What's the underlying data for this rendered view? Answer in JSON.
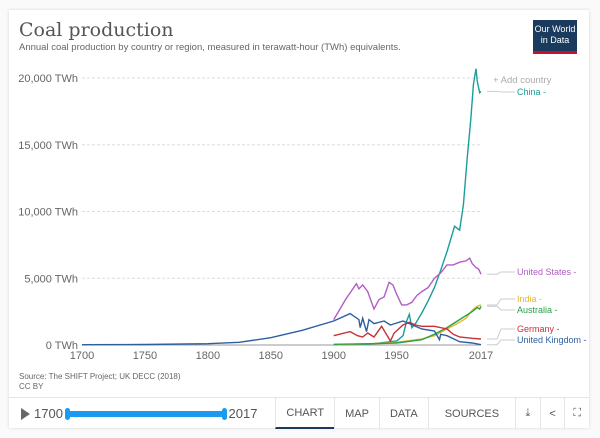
{
  "header": {
    "title": "Coal production",
    "subtitle": "Annual coal production by country or region, measured in terawatt-hour (TWh) equivalents.",
    "logo": "Our World in Data"
  },
  "add_country": "+ Add country",
  "footer": {
    "source": "Source: The SHIFT Project; UK DECC (2018)",
    "license": "CC BY"
  },
  "controls": {
    "start_year": "1700",
    "end_year": "2017",
    "tabs": [
      "CHART",
      "MAP",
      "DATA",
      "SOURCES"
    ],
    "active_tab": "CHART",
    "icons": [
      "download-icon",
      "share-icon",
      "fullscreen-icon"
    ]
  },
  "chart_data": {
    "type": "line",
    "title": "Coal production",
    "ylabel": "TWh",
    "xlim": [
      1700,
      2017
    ],
    "ylim": [
      0,
      20000
    ],
    "x_ticks": [
      1700,
      1750,
      1800,
      1850,
      1900,
      1950,
      2017
    ],
    "y_ticks": [
      {
        "v": 0,
        "label": "0 TWh"
      },
      {
        "v": 5000,
        "label": "5,000 TWh"
      },
      {
        "v": 10000,
        "label": "10,000 TWh"
      },
      {
        "v": 15000,
        "label": "15,000 TWh"
      },
      {
        "v": 20000,
        "label": "20,000 TWh"
      }
    ],
    "series": [
      {
        "name": "China",
        "label": "China -",
        "color": "#1a9e9a",
        "points": [
          [
            1900,
            10
          ],
          [
            1930,
            80
          ],
          [
            1950,
            300
          ],
          [
            1955,
            700
          ],
          [
            1958,
            1800
          ],
          [
            1960,
            2300
          ],
          [
            1962,
            1300
          ],
          [
            1965,
            1600
          ],
          [
            1970,
            2400
          ],
          [
            1975,
            3300
          ],
          [
            1980,
            4300
          ],
          [
            1985,
            5600
          ],
          [
            1990,
            7000
          ],
          [
            1996,
            8900
          ],
          [
            2000,
            8600
          ],
          [
            2003,
            10500
          ],
          [
            2006,
            14000
          ],
          [
            2009,
            17000
          ],
          [
            2011,
            19500
          ],
          [
            2013,
            20700
          ],
          [
            2014,
            19800
          ],
          [
            2015,
            19300
          ],
          [
            2016,
            18900
          ],
          [
            2017,
            19000
          ]
        ]
      },
      {
        "name": "United States",
        "label": "United States -",
        "color": "#b05ec4",
        "points": [
          [
            1900,
            1900
          ],
          [
            1905,
            2700
          ],
          [
            1910,
            3500
          ],
          [
            1913,
            3900
          ],
          [
            1918,
            4600
          ],
          [
            1920,
            4200
          ],
          [
            1923,
            4500
          ],
          [
            1927,
            4000
          ],
          [
            1932,
            2700
          ],
          [
            1936,
            3400
          ],
          [
            1940,
            3600
          ],
          [
            1944,
            4700
          ],
          [
            1947,
            4500
          ],
          [
            1950,
            3800
          ],
          [
            1954,
            3000
          ],
          [
            1958,
            3000
          ],
          [
            1962,
            3200
          ],
          [
            1966,
            3700
          ],
          [
            1970,
            4000
          ],
          [
            1975,
            4300
          ],
          [
            1980,
            5000
          ],
          [
            1985,
            5400
          ],
          [
            1990,
            6000
          ],
          [
            1995,
            6000
          ],
          [
            2000,
            6200
          ],
          [
            2005,
            6300
          ],
          [
            2008,
            6500
          ],
          [
            2010,
            6100
          ],
          [
            2013,
            5800
          ],
          [
            2015,
            5700
          ],
          [
            2017,
            5300
          ]
        ]
      },
      {
        "name": "India",
        "label": "India -",
        "color": "#e8b52a",
        "points": [
          [
            1900,
            20
          ],
          [
            1930,
            100
          ],
          [
            1950,
            200
          ],
          [
            1970,
            450
          ],
          [
            1980,
            700
          ],
          [
            1990,
            1200
          ],
          [
            2000,
            1700
          ],
          [
            2005,
            2000
          ],
          [
            2010,
            2600
          ],
          [
            2014,
            2900
          ],
          [
            2017,
            3000
          ]
        ]
      },
      {
        "name": "Australia",
        "label": "Australia -",
        "color": "#2aa04a",
        "points": [
          [
            1900,
            50
          ],
          [
            1930,
            100
          ],
          [
            1950,
            150
          ],
          [
            1970,
            400
          ],
          [
            1980,
            800
          ],
          [
            1990,
            1300
          ],
          [
            2000,
            1900
          ],
          [
            2005,
            2200
          ],
          [
            2010,
            2500
          ],
          [
            2014,
            2800
          ],
          [
            2016,
            2700
          ],
          [
            2017,
            2900
          ]
        ]
      },
      {
        "name": "Germany",
        "label": "Germany -",
        "color": "#c8303a",
        "points": [
          [
            1900,
            700
          ],
          [
            1913,
            1000
          ],
          [
            1919,
            700
          ],
          [
            1923,
            600
          ],
          [
            1927,
            900
          ],
          [
            1932,
            600
          ],
          [
            1938,
            1400
          ],
          [
            1945,
            300
          ],
          [
            1948,
            900
          ],
          [
            1955,
            1500
          ],
          [
            1960,
            1700
          ],
          [
            1965,
            1500
          ],
          [
            1970,
            1400
          ],
          [
            1980,
            1400
          ],
          [
            1990,
            1200
          ],
          [
            1995,
            800
          ],
          [
            2000,
            600
          ],
          [
            2010,
            500
          ],
          [
            2017,
            450
          ]
        ]
      },
      {
        "name": "United Kingdom",
        "label": "United Kingdom -",
        "color": "#2e5fa0",
        "points": [
          [
            1700,
            20
          ],
          [
            1750,
            40
          ],
          [
            1800,
            100
          ],
          [
            1825,
            200
          ],
          [
            1850,
            550
          ],
          [
            1875,
            1100
          ],
          [
            1900,
            1800
          ],
          [
            1913,
            2350
          ],
          [
            1920,
            1900
          ],
          [
            1921,
            1300
          ],
          [
            1923,
            2000
          ],
          [
            1926,
            1000
          ],
          [
            1928,
            1900
          ],
          [
            1932,
            1600
          ],
          [
            1940,
            1800
          ],
          [
            1945,
            1500
          ],
          [
            1955,
            1800
          ],
          [
            1960,
            1600
          ],
          [
            1970,
            1200
          ],
          [
            1980,
            1050
          ],
          [
            1984,
            400
          ],
          [
            1985,
            800
          ],
          [
            1990,
            700
          ],
          [
            2000,
            250
          ],
          [
            2010,
            150
          ],
          [
            2017,
            20
          ]
        ]
      }
    ]
  }
}
